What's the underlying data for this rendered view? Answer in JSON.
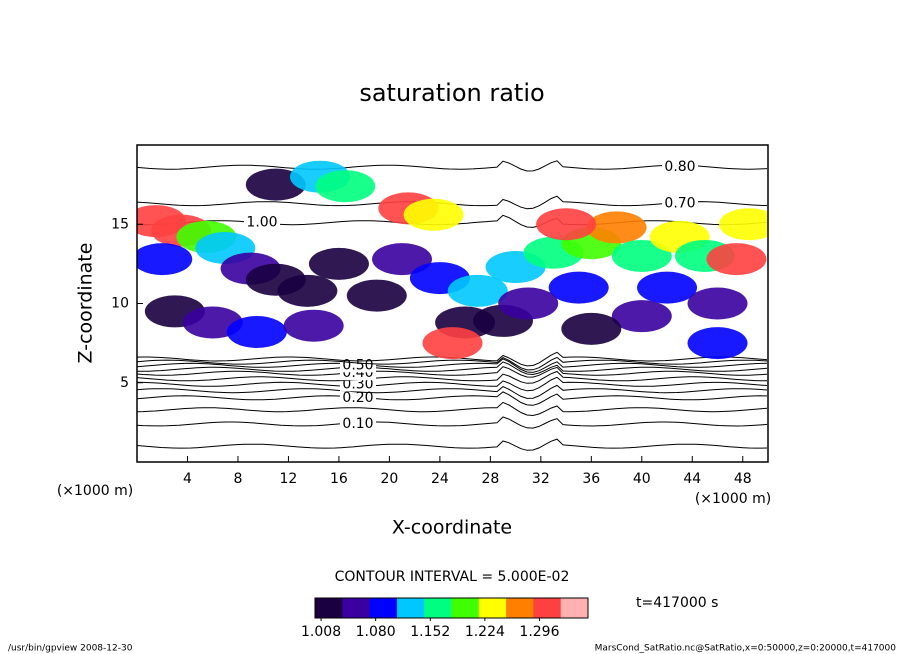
{
  "chart_data": {
    "type": "contour",
    "title": "saturation ratio",
    "x_label": "X-coordinate",
    "y_label": "Z-coordinate",
    "x_unit": "(×1000 m)",
    "y_unit": "(×1000 m)",
    "xlim": [
      0,
      50
    ],
    "ylim": [
      0,
      20
    ],
    "xticks": [
      4,
      8,
      12,
      16,
      20,
      24,
      28,
      32,
      36,
      40,
      44,
      48
    ],
    "yticks": [
      5,
      10,
      15
    ],
    "interval_label": "CONTOUR INTERVAL = 5.000E-02",
    "time_label": "t=417000 s",
    "footer_left": "/usr/bin/gpview   2008-12-30",
    "footer_right": "MarsCond_SatRatio.nc@SatRatio,x=0:50000,z=0:20000,t=417000",
    "clim": [
      1.0,
      1.36
    ],
    "colorbar_ticks": [
      1.008,
      {
        "value": 1.08,
        "label": "1.080"
      },
      1.152,
      1.224,
      1.296
    ],
    "colormap": [
      "#1a0040",
      "#3a00a0",
      "#0000ff",
      "#00c8ff",
      "#00ff80",
      "#40ff00",
      "#ffff00",
      "#ff8000",
      "#ff4040",
      "#ffb0b0"
    ],
    "contours": [
      {
        "level": 0.05,
        "z": 1.0
      },
      {
        "level": {
          "value": 0.1,
          "label": "0.10"
        },
        "z": 2.4
      },
      {
        "level": 0.15,
        "z": 3.3
      },
      {
        "level": {
          "value": 0.2,
          "label": "0.20"
        },
        "z": 4.05
      },
      {
        "level": 0.25,
        "z": 4.5
      },
      {
        "level": {
          "value": 0.3,
          "label": "0.30"
        },
        "z": 4.9
      },
      {
        "level": 0.35,
        "z": 5.25
      },
      {
        "level": {
          "value": 0.4,
          "label": "0.40"
        },
        "z": 5.6
      },
      {
        "level": 0.45,
        "z": 5.85
      },
      {
        "level": {
          "value": 0.5,
          "label": "0.50"
        },
        "z": 6.1
      },
      {
        "level": 0.55,
        "z": 6.3
      },
      {
        "level": 0.6,
        "z": 6.5
      },
      {
        "level": {
          "value": 0.7,
          "label": "0.70"
        },
        "z": 16.3
      },
      {
        "level": {
          "value": 0.8,
          "label": "0.80"
        },
        "z": 18.6
      },
      {
        "level": {
          "value": 1.0,
          "label": "1.00"
        },
        "z": 15.1
      }
    ],
    "samples": [
      {
        "x": 1.5,
        "z": 15.2,
        "v": 1.32
      },
      {
        "x": 3.5,
        "z": 14.6,
        "v": 1.3
      },
      {
        "x": 5.5,
        "z": 14.2,
        "v": 1.2
      },
      {
        "x": 7,
        "z": 13.5,
        "v": 1.12
      },
      {
        "x": 2,
        "z": 12.8,
        "v": 1.1
      },
      {
        "x": 9,
        "z": 12.2,
        "v": 1.06
      },
      {
        "x": 11,
        "z": 11.5,
        "v": 1.03
      },
      {
        "x": 13.5,
        "z": 10.8,
        "v": 1.02
      },
      {
        "x": 3,
        "z": 9.5,
        "v": 1.01
      },
      {
        "x": 6,
        "z": 8.8,
        "v": 1.05
      },
      {
        "x": 9.5,
        "z": 8.2,
        "v": 1.08
      },
      {
        "x": 14,
        "z": 8.6,
        "v": 1.04
      },
      {
        "x": 16,
        "z": 12.5,
        "v": 1.02
      },
      {
        "x": 11,
        "z": 17.5,
        "v": 1.03
      },
      {
        "x": 14.5,
        "z": 18.0,
        "v": 1.14
      },
      {
        "x": 16.5,
        "z": 17.4,
        "v": 1.18
      },
      {
        "x": 21.5,
        "z": 16.0,
        "v": 1.3
      },
      {
        "x": 23.5,
        "z": 15.6,
        "v": 1.22
      },
      {
        "x": 21,
        "z": 12.8,
        "v": 1.06
      },
      {
        "x": 24,
        "z": 11.6,
        "v": 1.09
      },
      {
        "x": 27,
        "z": 10.8,
        "v": 1.11
      },
      {
        "x": 26,
        "z": 8.8,
        "v": 1.015
      },
      {
        "x": 29,
        "z": 8.9,
        "v": 1.012
      },
      {
        "x": 25,
        "z": 7.5,
        "v": 1.32
      },
      {
        "x": 30,
        "z": 12.3,
        "v": 1.14
      },
      {
        "x": 33,
        "z": 13.2,
        "v": 1.17
      },
      {
        "x": 36,
        "z": 13.8,
        "v": 1.2
      },
      {
        "x": 38,
        "z": 14.8,
        "v": 1.27
      },
      {
        "x": 34,
        "z": 15.0,
        "v": 1.3
      },
      {
        "x": 40,
        "z": 13.0,
        "v": 1.18
      },
      {
        "x": 43,
        "z": 14.2,
        "v": 1.22
      },
      {
        "x": 45,
        "z": 13.0,
        "v": 1.16
      },
      {
        "x": 47.5,
        "z": 12.8,
        "v": 1.31
      },
      {
        "x": 48.5,
        "z": 15.0,
        "v": 1.25
      },
      {
        "x": 42,
        "z": 11.0,
        "v": 1.1
      },
      {
        "x": 35,
        "z": 11.0,
        "v": 1.08
      },
      {
        "x": 46,
        "z": 10.0,
        "v": 1.05
      },
      {
        "x": 40,
        "z": 9.2,
        "v": 1.04
      },
      {
        "x": 46,
        "z": 7.5,
        "v": 1.1
      },
      {
        "x": 31,
        "z": 10.0,
        "v": 1.07
      },
      {
        "x": 19,
        "z": 10.5,
        "v": 1.03
      },
      {
        "x": 36,
        "z": 8.4,
        "v": 1.03
      }
    ]
  }
}
